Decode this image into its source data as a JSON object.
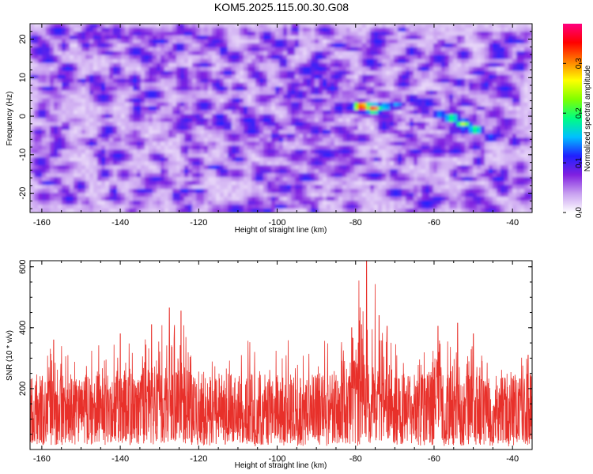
{
  "title": "KOM5.2025.115.00.30.G08",
  "chart_data": [
    {
      "type": "heatmap",
      "xlabel": "Height of straight line (km)",
      "ylabel": "Frequency (Hz)",
      "xlim": [
        -163,
        -35
      ],
      "ylim": [
        -25,
        24
      ],
      "x_ticks": [
        -160,
        -140,
        -120,
        -100,
        -80,
        -60,
        -40
      ],
      "y_ticks": [
        -20,
        -10,
        0,
        10,
        20
      ],
      "colorbar": {
        "label": "Normalized spectral amplitude",
        "range": [
          0.0,
          0.38
        ],
        "ticks": [
          0.0,
          0.1,
          0.2,
          0.3
        ],
        "tick_labels": [
          "0.0",
          "0.1",
          "0.2",
          "0.3"
        ],
        "colors": [
          "#ffffff",
          "#c8a0f0",
          "#8020e0",
          "#2020ff",
          "#00c0ff",
          "#00ff80",
          "#80ff00",
          "#ffff00",
          "#ff8000",
          "#ff0000",
          "#ff0080"
        ]
      },
      "hotspots": [
        {
          "x": -79,
          "y": 3,
          "amplitude": 0.38
        },
        {
          "x": -76,
          "y": 2.5,
          "amplitude": 0.33
        },
        {
          "x": -73,
          "y": 3,
          "amplitude": 0.18
        },
        {
          "x": -70,
          "y": 3.5,
          "amplitude": 0.15
        },
        {
          "x": -66,
          "y": 5,
          "amplitude": 0.12
        },
        {
          "x": -62,
          "y": 4,
          "amplitude": 0.13
        },
        {
          "x": -59,
          "y": 1,
          "amplitude": 0.16
        },
        {
          "x": -56,
          "y": 0,
          "amplitude": 0.22
        },
        {
          "x": -53,
          "y": -1.5,
          "amplitude": 0.25
        },
        {
          "x": -50,
          "y": -3,
          "amplitude": 0.22
        },
        {
          "x": -46,
          "y": -5,
          "amplitude": 0.14
        },
        {
          "x": -130,
          "y": 20,
          "amplitude": 0.12
        },
        {
          "x": -124,
          "y": -19,
          "amplitude": 0.12
        },
        {
          "x": -156,
          "y": -6,
          "amplitude": 0.1
        },
        {
          "x": -103,
          "y": -24,
          "amplitude": 0.11
        }
      ]
    },
    {
      "type": "line",
      "xlabel": "Height of straight line (km)",
      "ylabel": "SNR (10 * v/v)",
      "xlim": [
        -163,
        -35
      ],
      "ylim": [
        0,
        620
      ],
      "x_ticks": [
        -160,
        -140,
        -120,
        -100,
        -80,
        -60,
        -40
      ],
      "y_ticks": [
        200,
        400,
        600
      ],
      "series": [
        {
          "color": "#e8302a",
          "baseline": 130,
          "spread": 150,
          "peaks": [
            {
              "x": -127.5,
              "y": 465
            },
            {
              "x": -124.5,
              "y": 455
            },
            {
              "x": -132,
              "y": 410
            },
            {
              "x": -77.2,
              "y": 630
            },
            {
              "x": -78.5,
              "y": 410
            },
            {
              "x": -81,
              "y": 400
            },
            {
              "x": -74,
              "y": 440
            },
            {
              "x": -72,
              "y": 405
            },
            {
              "x": -59,
              "y": 405
            },
            {
              "x": -54,
              "y": 415
            },
            {
              "x": -50,
              "y": 380
            },
            {
              "x": -157,
              "y": 360
            },
            {
              "x": -140,
              "y": 380
            },
            {
              "x": -36,
              "y": 310
            }
          ]
        }
      ]
    }
  ]
}
